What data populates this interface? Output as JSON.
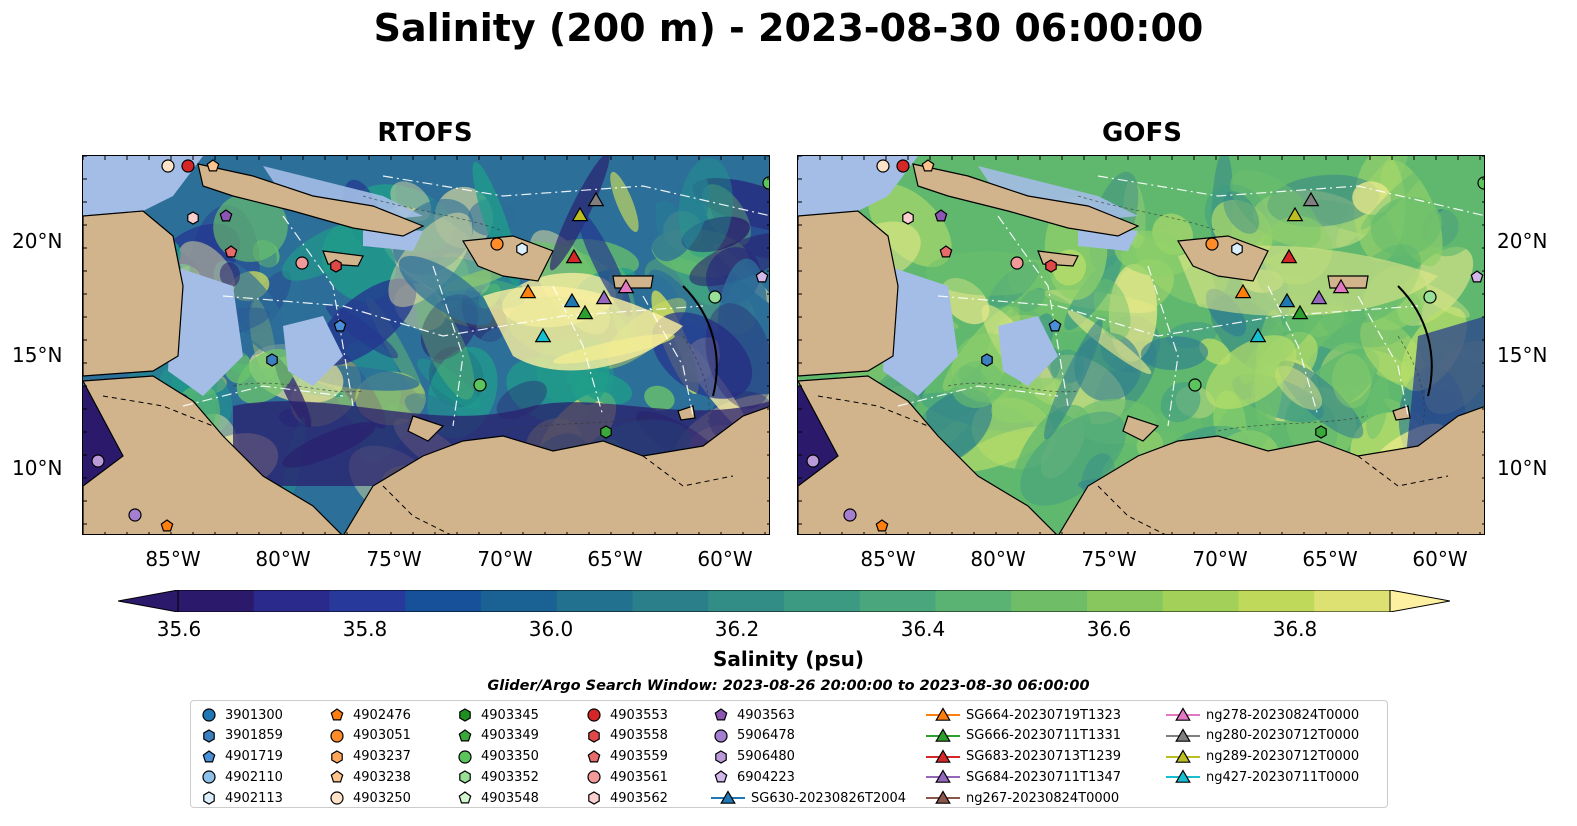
{
  "title": "Salinity (200 m) - 2023-08-30 06:00:00",
  "panels": [
    {
      "title": "RTOFS",
      "palette": [
        "#2c6f99",
        "#1f9e8a",
        "#6cc46a",
        "#d5e35a",
        "#fdf0a0",
        "#2a1f6e",
        "#24368f"
      ]
    },
    {
      "title": "GOFS",
      "palette": [
        "#5fb86e",
        "#8fd06a",
        "#b9de6a",
        "#e9e98a",
        "#3f9c84",
        "#2f7f8e",
        "#6dc06c"
      ]
    }
  ],
  "lat_labels": [
    "20°N",
    "15°N",
    "10°N"
  ],
  "lon_labels": [
    "85°W",
    "80°W",
    "75°W",
    "70°W",
    "65°W",
    "60°W"
  ],
  "colorbar": {
    "ticks": [
      "35.6",
      "35.8",
      "36.0",
      "36.2",
      "36.4",
      "36.6",
      "36.8"
    ],
    "label": "Salinity (psu)",
    "colors": [
      "#2b1a6b",
      "#2a2a8c",
      "#27399a",
      "#16519a",
      "#1a6294",
      "#22718e",
      "#2a7f8b",
      "#338d87",
      "#3c9a83",
      "#49a67d",
      "#5ab273",
      "#70bd68",
      "#88c75e",
      "#a2d058",
      "#bfd95b",
      "#dde172"
    ],
    "extend_min_color": "#2b1a6b",
    "extend_max_color": "#fdf0a0"
  },
  "search_window": "Glider/Argo Search Window: 2023-08-26 20:00:00 to 2023-08-30 06:00:00",
  "legend": [
    {
      "label": "3901300",
      "marker": "circle",
      "color": "#1f77b4"
    },
    {
      "label": "3901859",
      "marker": "hexagon",
      "color": "#3c7fc0"
    },
    {
      "label": "4901719",
      "marker": "pentagon",
      "color": "#4a90d9"
    },
    {
      "label": "4902110",
      "marker": "circle",
      "color": "#8ec1ea"
    },
    {
      "label": "4902113",
      "marker": "hexagon",
      "color": "#dbeefb"
    },
    {
      "label": "4902476",
      "marker": "pentagon",
      "color": "#ff7f0e"
    },
    {
      "label": "4903051",
      "marker": "circle",
      "color": "#ff8c28"
    },
    {
      "label": "4903237",
      "marker": "hexagon",
      "color": "#ffa55c"
    },
    {
      "label": "4903238",
      "marker": "pentagon",
      "color": "#ffc38d"
    },
    {
      "label": "4903250",
      "marker": "circle",
      "color": "#ffe3c8"
    },
    {
      "label": "4903345",
      "marker": "hexagon",
      "color": "#1f8f1f"
    },
    {
      "label": "4903349",
      "marker": "pentagon",
      "color": "#3aa83a"
    },
    {
      "label": "4903350",
      "marker": "circle",
      "color": "#5cc45c"
    },
    {
      "label": "4903352",
      "marker": "hexagon",
      "color": "#98e098"
    },
    {
      "label": "4903548",
      "marker": "pentagon",
      "color": "#d4f6d0"
    },
    {
      "label": "4903553",
      "marker": "circle",
      "color": "#d62728"
    },
    {
      "label": "4903558",
      "marker": "hexagon",
      "color": "#e04848"
    },
    {
      "label": "4903559",
      "marker": "pentagon",
      "color": "#e86a6a"
    },
    {
      "label": "4903561",
      "marker": "circle",
      "color": "#f29a9a"
    },
    {
      "label": "4903562",
      "marker": "hexagon",
      "color": "#fbcfcf"
    },
    {
      "label": "4903563",
      "marker": "pentagon",
      "color": "#8c55b3"
    },
    {
      "label": "5906478",
      "marker": "circle",
      "color": "#a57fcf"
    },
    {
      "label": "5906480",
      "marker": "hexagon",
      "color": "#bb9ad9"
    },
    {
      "label": "6904223",
      "marker": "pentagon",
      "color": "#d2b8ea"
    },
    {
      "label": "SG630-20230826T2004",
      "marker": "triangle-line",
      "color": "#1f77b4"
    },
    {
      "label": "SG664-20230719T1323",
      "marker": "triangle-line",
      "color": "#ff7f0e"
    },
    {
      "label": "SG666-20230711T1331",
      "marker": "triangle-line",
      "color": "#2ca02c"
    },
    {
      "label": "SG683-20230713T1239",
      "marker": "triangle-line",
      "color": "#d62728"
    },
    {
      "label": "SG684-20230711T1347",
      "marker": "triangle-line",
      "color": "#9467bd"
    },
    {
      "label": "ng267-20230824T0000",
      "marker": "triangle-line",
      "color": "#8c564b"
    },
    {
      "label": "ng278-20230824T0000",
      "marker": "triangle-line",
      "color": "#e377c2"
    },
    {
      "label": "ng280-20230712T0000",
      "marker": "triangle-line",
      "color": "#7f7f7f"
    },
    {
      "label": "ng289-20230712T0000",
      "marker": "triangle-line",
      "color": "#bcbd22"
    },
    {
      "label": "ng427-20230711T0000",
      "marker": "triangle-line",
      "color": "#17becf"
    }
  ],
  "colors": {
    "land": "#d2b48c",
    "shelf_water": "#a3bde6",
    "deep_water": "#2b1a6b"
  }
}
